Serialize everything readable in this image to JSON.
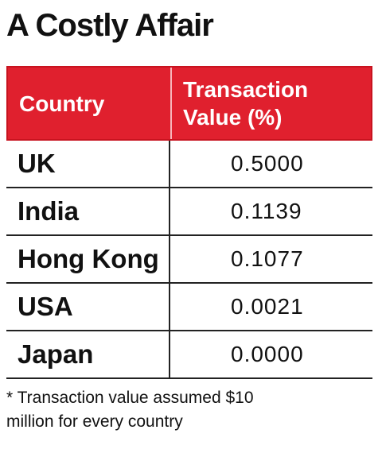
{
  "title": "A Costly Affair",
  "table": {
    "headers": {
      "country": "Country",
      "value_line1": "Transaction",
      "value_line2": "Value (%)"
    },
    "header_color": "#e0202e",
    "rows": [
      {
        "country": "UK",
        "value": "0.5000"
      },
      {
        "country": "India",
        "value": "0.1139"
      },
      {
        "country": "Hong Kong",
        "value": "0.1077"
      },
      {
        "country": "USA",
        "value": "0.0021"
      },
      {
        "country": "Japan",
        "value": "0.0000"
      }
    ]
  },
  "footnote_line1": "* Transaction value assumed $10",
  "footnote_line2": "million for every country",
  "chart_data": {
    "type": "table",
    "title": "A Costly Affair",
    "columns": [
      "Country",
      "Transaction Value (%)"
    ],
    "rows": [
      [
        "UK",
        0.5
      ],
      [
        "India",
        0.1139
      ],
      [
        "Hong Kong",
        0.1077
      ],
      [
        "USA",
        0.0021
      ],
      [
        "Japan",
        0.0
      ]
    ]
  }
}
